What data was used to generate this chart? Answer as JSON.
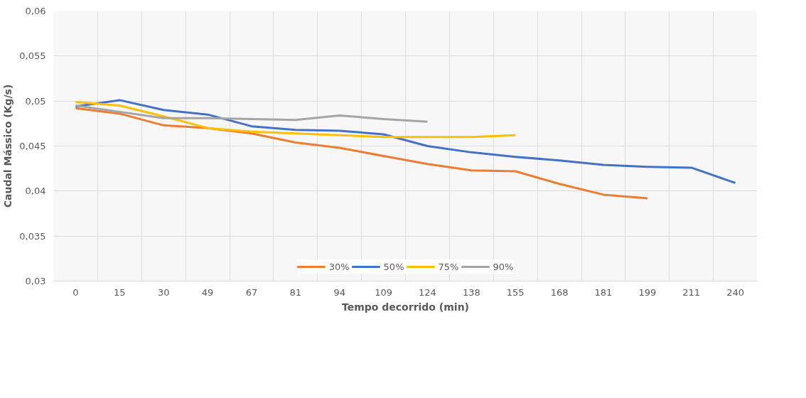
{
  "chart_data": {
    "type": "line",
    "xlabel": "Tempo decorrido (min)",
    "ylabel": "Caudal Mássico (Kg/s)",
    "categories": [
      "0",
      "15",
      "30",
      "49",
      "67",
      "81",
      "94",
      "109",
      "124",
      "138",
      "155",
      "168",
      "181",
      "199",
      "211",
      "240"
    ],
    "ylim": [
      0.03,
      0.06
    ],
    "yticks": [
      {
        "value": 0.03,
        "label": "0,03"
      },
      {
        "value": 0.035,
        "label": "0,035"
      },
      {
        "value": 0.04,
        "label": "0,04"
      },
      {
        "value": 0.045,
        "label": "0,045"
      },
      {
        "value": 0.05,
        "label": "0,05"
      },
      {
        "value": 0.055,
        "label": "0,055"
      },
      {
        "value": 0.06,
        "label": "0,06"
      }
    ],
    "grid": true,
    "legend": "bottom",
    "marker": "none",
    "line_style": "solid",
    "series": [
      {
        "name": "30%",
        "color": "#ed7d31",
        "values": [
          0.0492,
          0.0486,
          0.0473,
          0.047,
          0.0464,
          0.0454,
          0.0448,
          0.0439,
          0.043,
          0.0423,
          0.0422,
          0.0408,
          0.0396,
          0.0392,
          null,
          null
        ]
      },
      {
        "name": "50%",
        "color": "#4472c4",
        "values": [
          0.0494,
          0.0501,
          0.049,
          0.0485,
          0.0472,
          0.0468,
          0.0467,
          0.0463,
          0.045,
          0.0443,
          0.0438,
          0.0434,
          0.0429,
          0.0427,
          0.0426,
          0.0409
        ]
      },
      {
        "name": "75%",
        "color": "#ffc000",
        "values": [
          0.0499,
          0.0495,
          0.0483,
          0.047,
          0.0466,
          0.0464,
          0.0462,
          0.046,
          0.046,
          0.046,
          0.0462,
          null,
          null,
          null,
          null,
          null
        ]
      },
      {
        "name": "90%",
        "color": "#a5a5a5",
        "values": [
          0.0495,
          0.0488,
          0.0481,
          0.0481,
          0.048,
          0.0479,
          0.0484,
          0.048,
          0.0477,
          null,
          null,
          null,
          null,
          null,
          null,
          null
        ]
      }
    ]
  }
}
